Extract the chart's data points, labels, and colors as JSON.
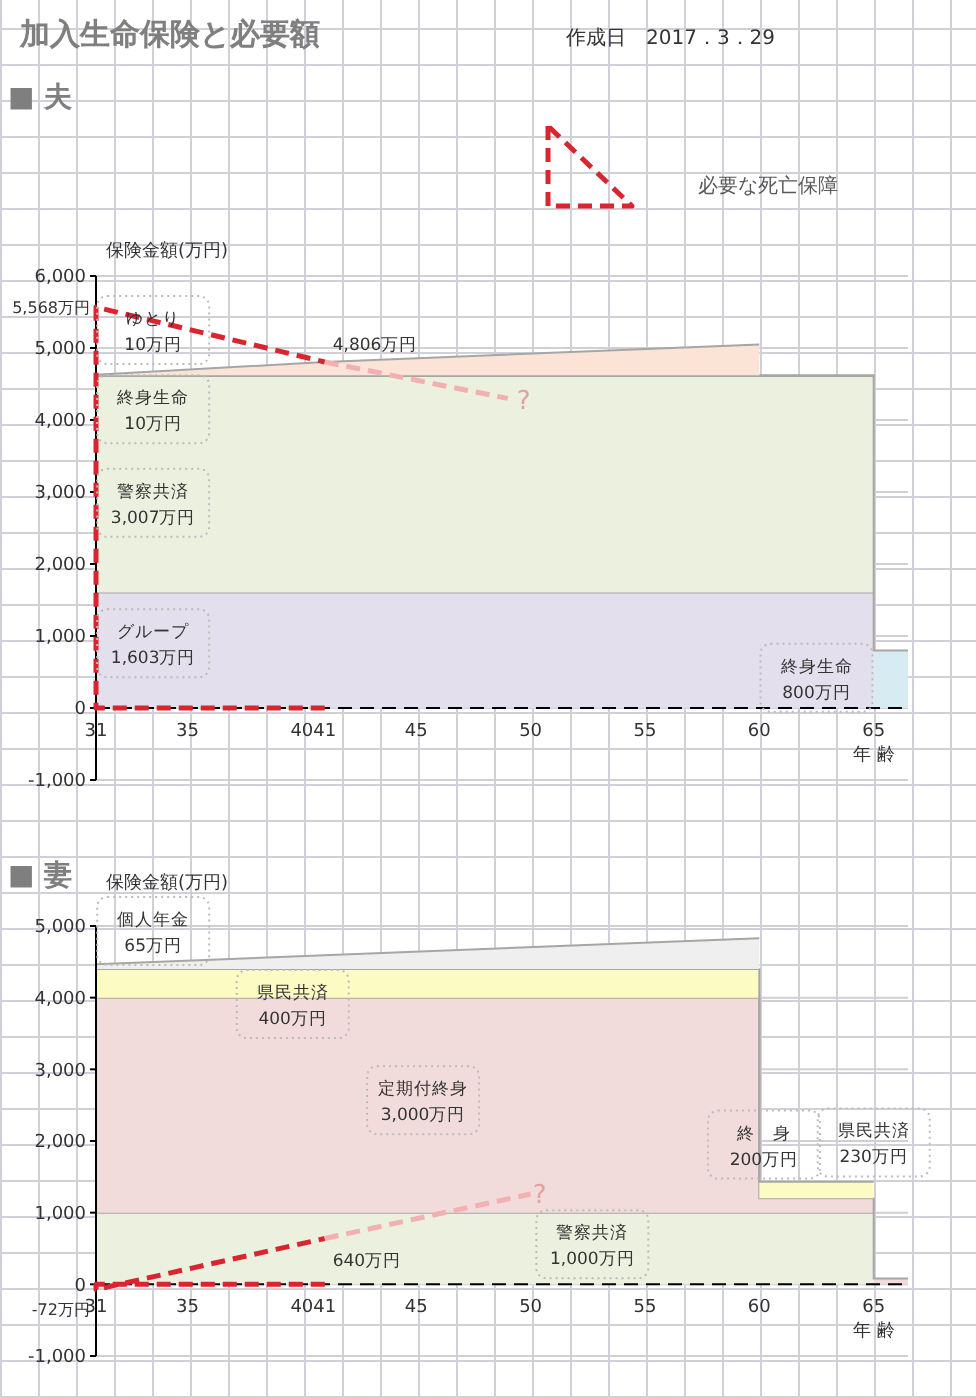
{
  "chart_data": [
    {
      "type": "other",
      "title": "加入生命保険と必要額",
      "subtitle": "作成日　2017．3．29"
    },
    {
      "type": "area",
      "title": "■ 夫",
      "ylabel": "保険金額(万円)",
      "xlabel": "年 齢",
      "stacked": true,
      "grid": "y",
      "legend": "top right",
      "line_style": "dashed",
      "x": [
        31,
        41,
        60,
        60,
        65,
        65,
        66.5
      ],
      "xlim": [
        31,
        66.5
      ],
      "xticks": [
        31,
        35,
        40,
        41,
        45,
        50,
        55,
        60,
        65
      ],
      "ylim": [
        -1000,
        6000
      ],
      "yticks": [
        {
          "value": -1000,
          "label": "-1,000"
        },
        0,
        {
          "value": 1000,
          "label": "1,000"
        },
        {
          "value": 2000,
          "label": "2,000"
        },
        {
          "value": 3000,
          "label": "3,000"
        },
        {
          "value": 4000,
          "label": "4,000"
        },
        {
          "value": 5000,
          "label": "5,000"
        },
        {
          "value": 6000,
          "label": "6,000"
        }
      ],
      "ref_lines": [
        {
          "axis": "y",
          "value": 0,
          "color": "#000000",
          "line_style": "dashed"
        }
      ],
      "series": [
        {
          "color": "#e4dfec",
          "values": [
            1603,
            1603,
            1603,
            1603,
            1603,
            null,
            null
          ]
        },
        {
          "color": "#ebf1de",
          "values": [
            3007,
            3007,
            3007,
            3007,
            3007,
            null,
            null
          ]
        },
        {
          "color": "#d6ebf2",
          "values": [
            10,
            10,
            10,
            10,
            10,
            800,
            800
          ]
        },
        {
          "color": "#fbe3d6",
          "values": [
            10,
            186,
            430,
            null,
            null,
            null,
            null
          ]
        },
        {
          "type": "line",
          "name": "必要な死亡保障",
          "color": "#d9252f",
          "x": [
            41,
            31,
            31,
            41
          ],
          "values": [
            0,
            0,
            5568,
            4806
          ],
          "value_labels": [
            null,
            null,
            "5,568万円",
            "4,806万円"
          ]
        },
        {
          "type": "line",
          "color": "#f2b0b0",
          "x": [
            41,
            49
          ],
          "values": [
            4806,
            4300
          ]
        }
      ],
      "annotations": [
        "ゆとり\n10万円",
        "終身生命\n10万円",
        "警察共済\n3,007万円",
        "グループ\n1,603万円",
        "終身生命\n800万円",
        "?"
      ]
    },
    {
      "type": "area",
      "title": "■ 妻",
      "ylabel": "保険金額(万円)",
      "xlabel": "年 齢",
      "stacked": true,
      "grid": "y",
      "line_style": "dashed",
      "x": [
        31,
        60,
        60,
        65,
        65,
        66.5
      ],
      "xlim": [
        31,
        66.5
      ],
      "xticks": [
        31,
        35,
        40,
        41,
        45,
        50,
        55,
        60,
        65
      ],
      "ylim": [
        -1000,
        5000
      ],
      "yticks": [
        {
          "value": -1000,
          "label": "-1,000"
        },
        0,
        {
          "value": 1000,
          "label": "1,000"
        },
        {
          "value": 2000,
          "label": "2,000"
        },
        {
          "value": 3000,
          "label": "3,000"
        },
        {
          "value": 4000,
          "label": "4,000"
        },
        {
          "value": 5000,
          "label": "5,000"
        }
      ],
      "ref_lines": [
        {
          "axis": "y",
          "value": 0,
          "color": "#000000",
          "line_style": "dashed"
        }
      ],
      "series": [
        {
          "color": "#ebf1de",
          "values": [
            1000,
            1000,
            1000,
            1000,
            null,
            null
          ]
        },
        {
          "color": "#f2dcdb",
          "values": [
            3000,
            3000,
            200,
            200,
            80,
            80
          ]
        },
        {
          "color": "#fdfbc4",
          "values": [
            400,
            400,
            230,
            230,
            null,
            null
          ]
        },
        {
          "color": "#efefef",
          "values": [
            65,
            430,
            null,
            null,
            null,
            null
          ]
        },
        {
          "type": "line",
          "color": "#d9252f",
          "x": [
            41,
            31,
            31,
            41
          ],
          "values": [
            0,
            0,
            -72,
            640
          ],
          "value_labels": [
            null,
            null,
            "-72万円",
            "640万円"
          ]
        },
        {
          "type": "line",
          "color": "#f2b0b0",
          "x": [
            41,
            50
          ],
          "values": [
            640,
            1260
          ]
        }
      ],
      "annotations": [
        "個人年金\n65万円",
        "県民共済\n400万円",
        "定期付終身\n3,000万円",
        "終　身\n200万円",
        "県民共済\n230万円",
        "警察共済\n1,000万円",
        "?"
      ]
    }
  ]
}
